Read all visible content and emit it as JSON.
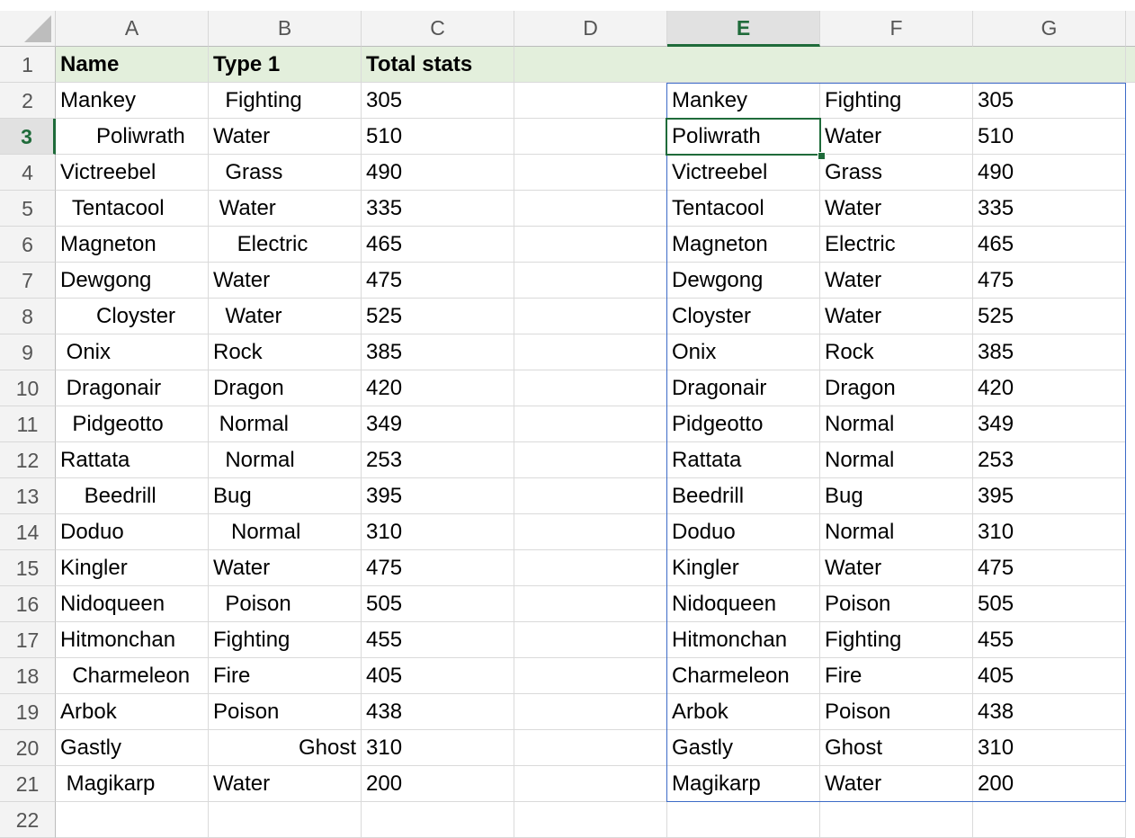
{
  "columns": [
    "A",
    "B",
    "C",
    "D",
    "E",
    "F",
    "G"
  ],
  "selected_column": "E",
  "selected_row": 3,
  "header": [
    "Name",
    "Type 1",
    "Total stats"
  ],
  "left_rows": [
    [
      "Mankey",
      "  Fighting",
      "305"
    ],
    [
      "      Poliwrath",
      "Water",
      "510"
    ],
    [
      "Victreebel",
      "  Grass",
      "490"
    ],
    [
      "  Tentacool",
      " Water",
      "335"
    ],
    [
      "Magneton",
      "    Electric",
      "465"
    ],
    [
      "Dewgong",
      "Water",
      "475"
    ],
    [
      "      Cloyster",
      "  Water",
      "525"
    ],
    [
      " Onix",
      "Rock",
      "385"
    ],
    [
      " Dragonair",
      "Dragon",
      "420"
    ],
    [
      "  Pidgeotto",
      " Normal",
      "349"
    ],
    [
      "Rattata",
      "  Normal",
      "253"
    ],
    [
      "    Beedrill",
      "Bug",
      "395"
    ],
    [
      "Doduo",
      "   Normal",
      "310"
    ],
    [
      "Kingler",
      "Water",
      "475"
    ],
    [
      "Nidoqueen",
      "  Poison",
      "505"
    ],
    [
      "Hitmonchan",
      "Fighting",
      "455"
    ],
    [
      "  Charmeleon",
      "Fire",
      "405"
    ],
    [
      "Arbok",
      "Poison",
      "438"
    ],
    [
      "Gastly",
      "Ghost",
      "310"
    ],
    [
      " Magikarp",
      "Water",
      "200"
    ]
  ],
  "right_rows": [
    [
      "Mankey",
      "Fighting",
      "305"
    ],
    [
      "Poliwrath",
      "Water",
      "510"
    ],
    [
      "Victreebel",
      "Grass",
      "490"
    ],
    [
      "Tentacool",
      "Water",
      "335"
    ],
    [
      "Magneton",
      "Electric",
      "465"
    ],
    [
      "Dewgong",
      "Water",
      "475"
    ],
    [
      "Cloyster",
      "Water",
      "525"
    ],
    [
      "Onix",
      "Rock",
      "385"
    ],
    [
      "Dragonair",
      "Dragon",
      "420"
    ],
    [
      "Pidgeotto",
      "Normal",
      "349"
    ],
    [
      "Rattata",
      "Normal",
      "253"
    ],
    [
      "Beedrill",
      "Bug",
      "395"
    ],
    [
      "Doduo",
      "Normal",
      "310"
    ],
    [
      "Kingler",
      "Water",
      "475"
    ],
    [
      "Nidoqueen",
      "Poison",
      "505"
    ],
    [
      "Hitmonchan",
      "Fighting",
      "455"
    ],
    [
      "Charmeleon",
      "Fire",
      "405"
    ],
    [
      "Arbok",
      "Poison",
      "438"
    ],
    [
      "Gastly",
      "Ghost",
      "310"
    ],
    [
      "Magikarp",
      "Water",
      "200"
    ]
  ],
  "right_aligned_cells": [
    [
      "B",
      20
    ]
  ],
  "colors": {
    "accent": "#1f6b3a",
    "header_fill": "#e3efdc",
    "selection_border": "#3d6bc7"
  }
}
